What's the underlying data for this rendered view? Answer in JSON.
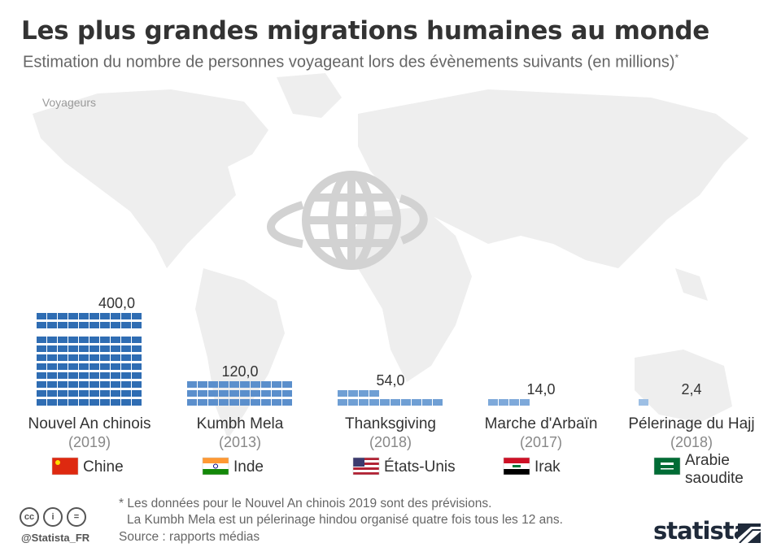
{
  "header": {
    "title": "Les plus grandes migrations humaines au monde",
    "subtitle": "Estimation du nombre de personnes voyageant lors des évènements suivants (en millions)",
    "subtitle_mark": "*"
  },
  "chart_data": {
    "type": "bar",
    "title": "Les plus grandes migrations humaines au monde",
    "ylabel": "Voyageurs",
    "categories": [
      "Nouvel An chinois",
      "Kumbh Mela",
      "Thanksgiving",
      "Marche d'Arbaïn",
      "Pélerinage du Hajj"
    ],
    "years": [
      "(2019)",
      "(2013)",
      "(2018)",
      "(2017)",
      "(2018)"
    ],
    "countries": [
      "Chine",
      "Inde",
      "États-Unis",
      "Irak",
      "Arabie saoudite"
    ],
    "values": [
      400.0,
      120.0,
      54.0,
      14.0,
      2.4
    ],
    "value_labels": [
      "400,0",
      "120,0",
      "54,0",
      "14,0",
      "2,4"
    ],
    "ylim": [
      0,
      400
    ],
    "colors": [
      "#2f6db3",
      "#5b8fcc",
      "#6f9fd4",
      "#7ea9da",
      "#9dbfe4"
    ]
  },
  "footer": {
    "note_line1": "* Les données pour le Nouvel An chinois 2019 sont des prévisions.",
    "note_line2": "La Kumbh Mela est un pélerinage hindou organisé quatre fois tous les 12 ans.",
    "source": "Source : rapports médias",
    "handle": "@Statista_FR",
    "brand": "statista"
  }
}
